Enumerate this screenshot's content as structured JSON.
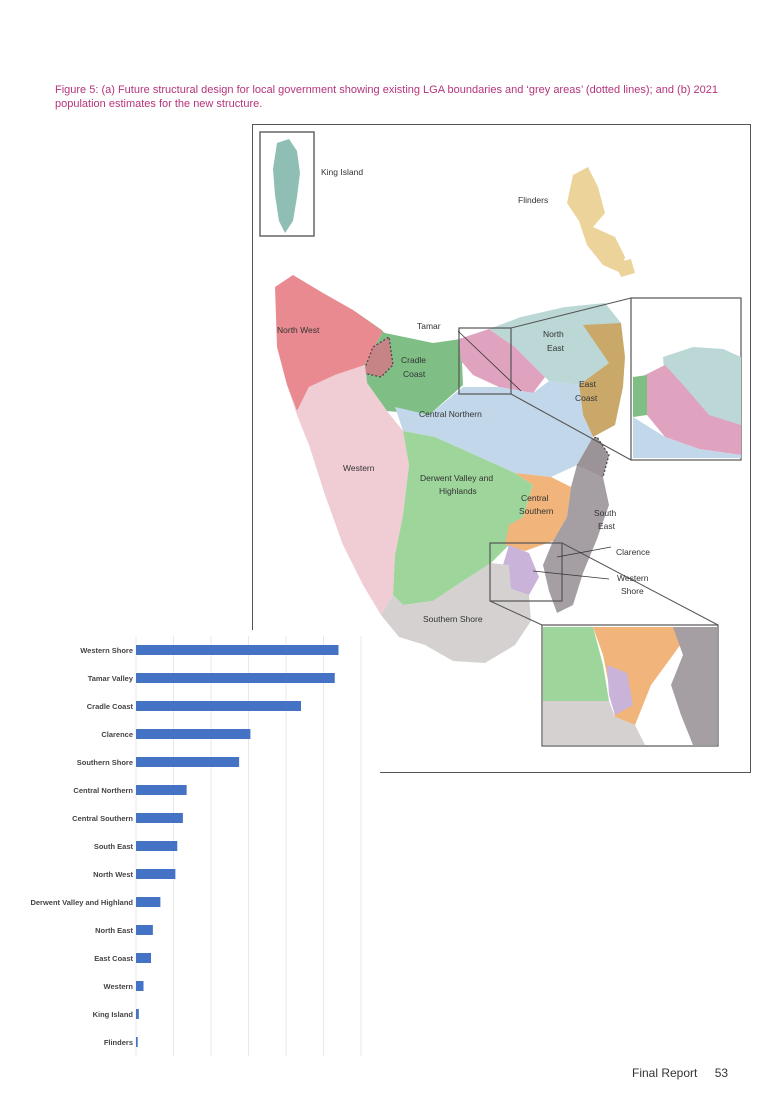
{
  "caption": "Figure 5: (a) Future structural design for local government showing existing LGA boundaries and ‘grey areas’ (dotted lines); and (b) 2021 population estimates for the new structure.",
  "map": {
    "labels": {
      "king_island": "King Island",
      "flinders": "Flinders",
      "north_west": "North West",
      "tamar": "Tamar",
      "north_east_1": "North",
      "north_east_2": "East",
      "cradle_1": "Cradle",
      "cradle_2": "Coast",
      "east_coast_1": "East",
      "east_coast_2": "Coast",
      "central_northern": "Central Northern",
      "western": "Western",
      "derwent_1": "Derwent Valley and",
      "derwent_2": "Highlands",
      "central_southern_1": "Central",
      "central_southern_2": "Southern",
      "south_east_1": "South",
      "south_east_2": "East",
      "clarence": "Clarence",
      "western_shore_1": "Western",
      "western_shore_2": "Shore",
      "southern_shore": "Southern Shore"
    },
    "colors": {
      "north_west": "#e88a8f",
      "king_island": "#8fbfb4",
      "flinders": "#ecd39a",
      "tamar": "#e0a3bf",
      "north_east": "#bcd8d6",
      "cradle_coast": "#7fbf86",
      "east_coast": "#c9a86a",
      "central_northern": "#c3d7ea",
      "western": "#f0cdd4",
      "derwent": "#9ed59a",
      "central_southern": "#f1b47a",
      "south_east": "#a59fa3",
      "southern_shore": "#d6d1d1",
      "western_shore": "#c9b3d8"
    }
  },
  "chart_data": {
    "type": "bar",
    "orientation": "horizontal",
    "categories": [
      "Western Shore",
      "Tamar Valley",
      "Cradle Coast",
      "Clarence",
      "Southern Shore",
      "Central Northern",
      "Central Southern",
      "South East",
      "North West",
      "Derwent Valley and Highland",
      "North East",
      "East Coast",
      "Western",
      "King Island",
      "Flinders"
    ],
    "values": [
      108000,
      106000,
      88000,
      61000,
      55000,
      27000,
      25000,
      22000,
      21000,
      13000,
      9000,
      8000,
      4000,
      1500,
      900
    ],
    "xlim": [
      0,
      120000
    ],
    "xticks": [
      "0",
      "20000",
      "40000",
      "60000",
      "80000",
      "100000",
      "120000"
    ],
    "bar_color": "#4472c4",
    "grid": true
  },
  "footer": {
    "report": "Final Report",
    "page": "53"
  }
}
